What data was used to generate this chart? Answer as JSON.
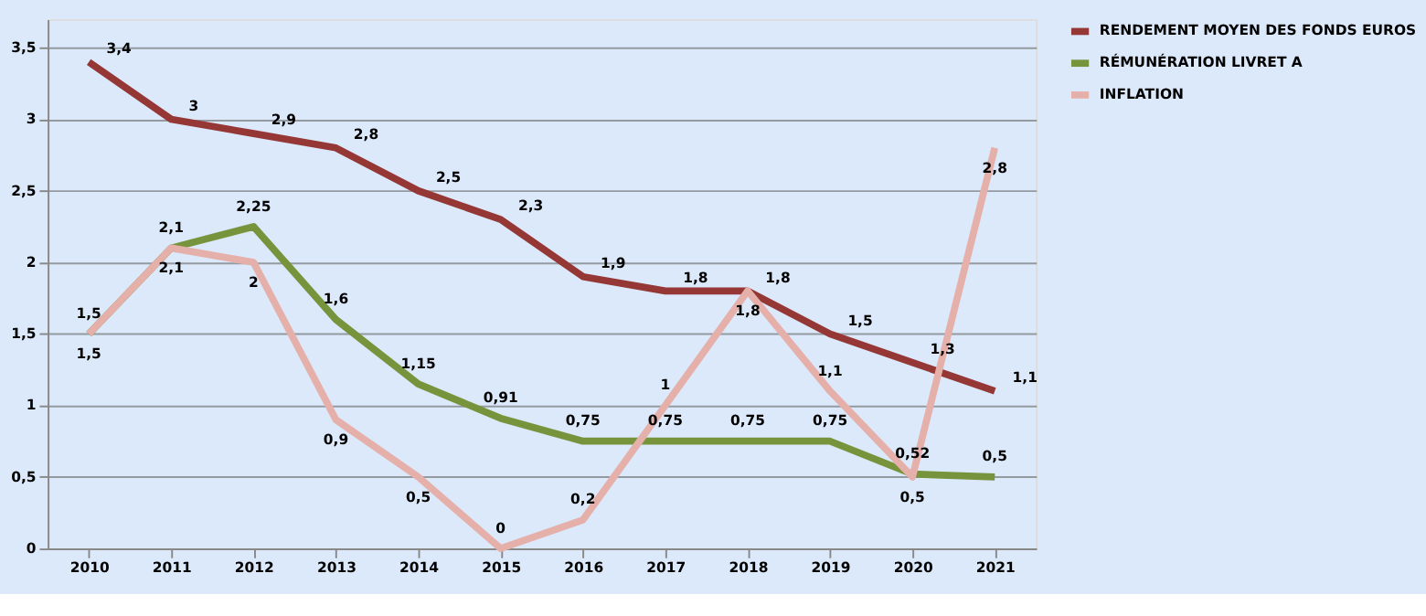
{
  "chart_data": {
    "type": "line",
    "categories": [
      "2010",
      "2011",
      "2012",
      "2013",
      "2014",
      "2015",
      "2016",
      "2017",
      "2018",
      "2019",
      "2020",
      "2021"
    ],
    "series": [
      {
        "name": "RENDEMENT MOYEN DES FONDS EUROS",
        "color": "#953735",
        "values": [
          3.4,
          3,
          2.9,
          2.8,
          2.5,
          2.3,
          1.9,
          1.8,
          1.8,
          1.5,
          1.3,
          1.1
        ],
        "value_labels": [
          "3,4",
          "3",
          "2,9",
          "2,8",
          "2,5",
          "2,3",
          "1,9",
          "1,8",
          "1,8",
          "1,5",
          "1,3",
          "1,1"
        ]
      },
      {
        "name": "RÉMUNÉRATION LIVRET A",
        "color": "#77933c",
        "values": [
          1.5,
          2.1,
          2.25,
          1.6,
          1.15,
          0.91,
          0.75,
          0.75,
          0.75,
          0.75,
          0.52,
          0.5
        ],
        "value_labels": [
          "1,5",
          "2,1",
          "2,25",
          "1,6",
          "1,15",
          "0,91",
          "0,75",
          "0,75",
          "0,75",
          "0,75",
          "0,52",
          "0,5"
        ]
      },
      {
        "name": "INFLATION",
        "color": "#e6b0aa",
        "values": [
          1.5,
          2.1,
          2,
          0.9,
          0.5,
          0,
          0.2,
          1,
          1.8,
          1.1,
          0.5,
          2.8
        ],
        "value_labels": [
          "1,5",
          "2,1",
          "2",
          "0,9",
          "0,5",
          "0",
          "0,2",
          "1",
          "1,8",
          "1,1",
          "0,5",
          "2,8"
        ]
      }
    ],
    "ylim": [
      0,
      3.7
    ],
    "yticks": [
      0,
      {
        "value": 0.5,
        "label": "0,5"
      },
      1,
      {
        "value": 1.5,
        "label": "1,5"
      },
      2,
      {
        "value": 2.5,
        "label": "2,5"
      },
      3,
      {
        "value": 3.5,
        "label": "3,5"
      }
    ],
    "grid": "y",
    "legend": "right",
    "marker": "none",
    "line_style": "solid"
  }
}
